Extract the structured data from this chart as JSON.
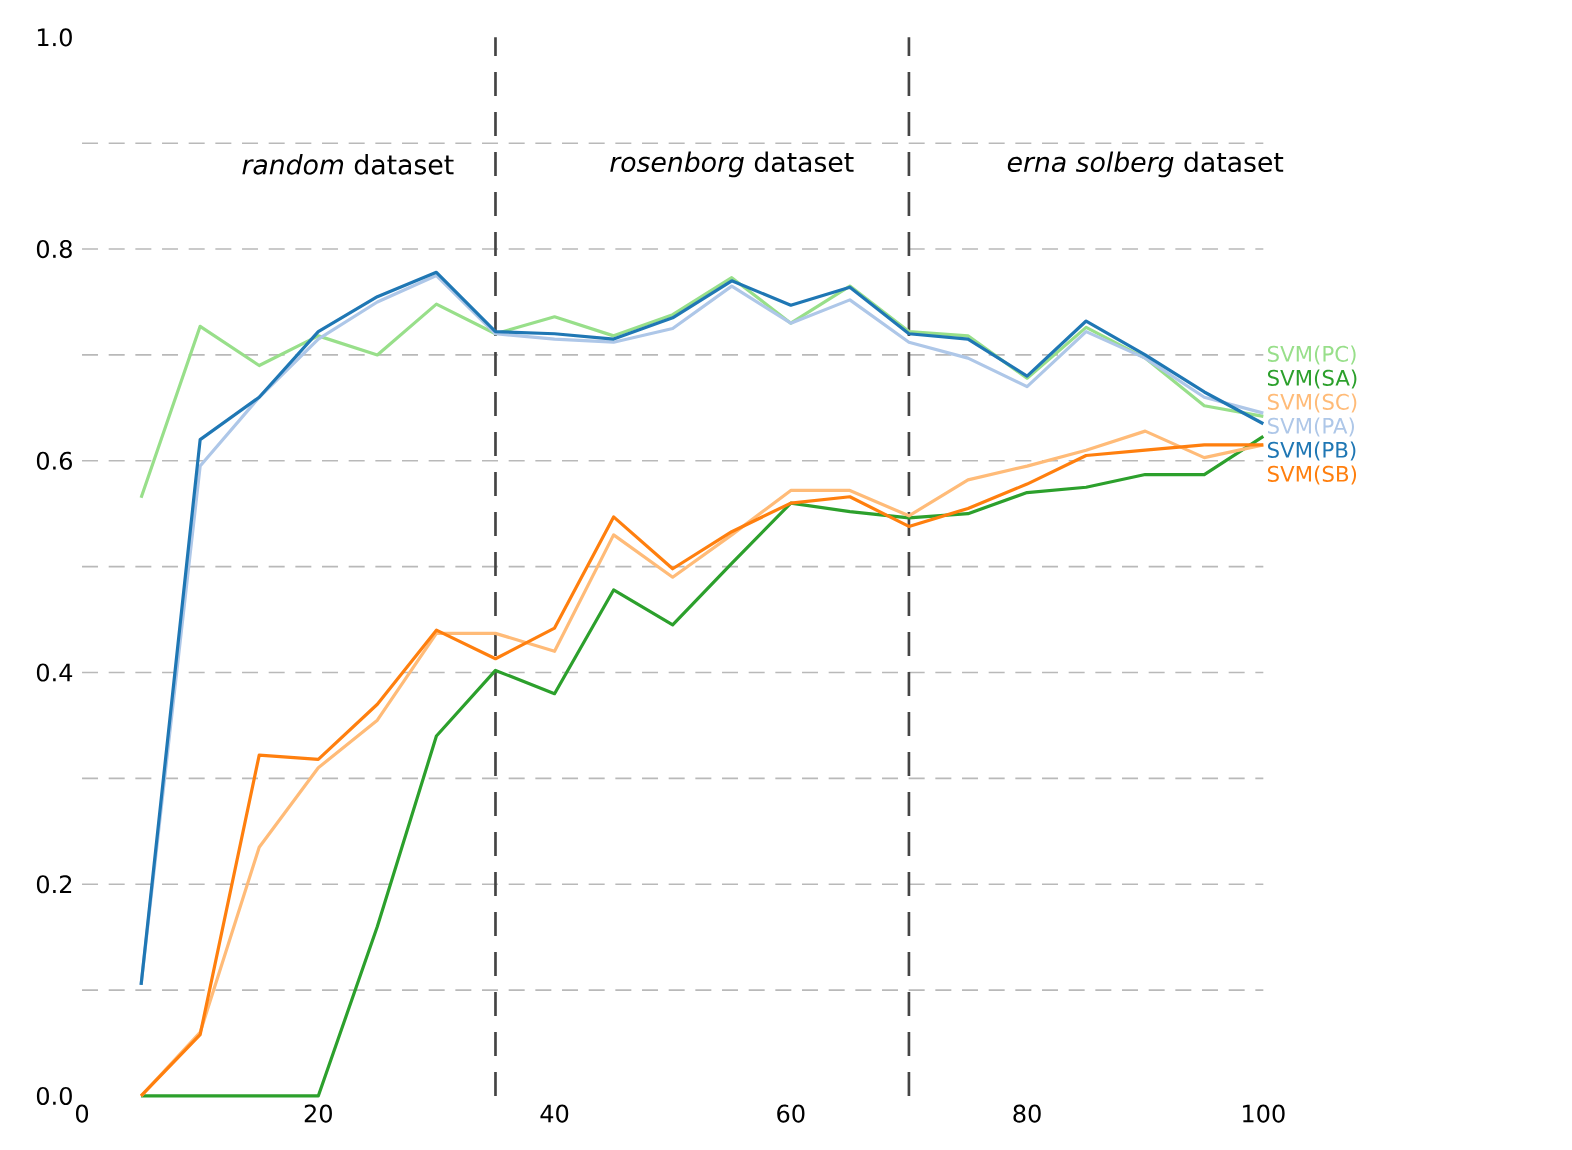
{
  "chart_data": {
    "type": "line",
    "x": [
      5,
      10,
      15,
      20,
      25,
      30,
      35,
      40,
      45,
      50,
      55,
      60,
      65,
      70,
      75,
      80,
      85,
      90,
      95,
      100
    ],
    "series": [
      {
        "name": "SVM(PC)",
        "color": "#98df8a",
        "values": [
          0.565,
          0.727,
          0.69,
          0.718,
          0.7,
          0.748,
          0.72,
          0.736,
          0.718,
          0.738,
          0.773,
          0.73,
          0.765,
          0.722,
          0.718,
          0.678,
          0.726,
          0.697,
          0.652,
          0.642
        ]
      },
      {
        "name": "SVM(SA)",
        "color": "#2ca02c",
        "values": [
          0,
          0,
          0,
          0,
          0.16,
          0.34,
          0.402,
          0.38,
          0.478,
          0.445,
          0.503,
          0.56,
          0.552,
          0.546,
          0.55,
          0.57,
          0.575,
          0.587,
          0.587,
          0.623
        ]
      },
      {
        "name": "SVM(SC)",
        "color": "#ffbb78",
        "values": [
          0,
          0.06,
          0.235,
          0.31,
          0.355,
          0.437,
          0.437,
          0.42,
          0.53,
          0.49,
          0.53,
          0.572,
          0.572,
          0.548,
          0.582,
          0.595,
          0.61,
          0.628,
          0.603,
          0.615
        ]
      },
      {
        "name": "SVM(PA)",
        "color": "#aec7e8",
        "values": [
          0.105,
          0.595,
          0.66,
          0.715,
          0.75,
          0.775,
          0.72,
          0.715,
          0.712,
          0.725,
          0.765,
          0.73,
          0.752,
          0.712,
          0.697,
          0.67,
          0.722,
          0.697,
          0.66,
          0.645
        ]
      },
      {
        "name": "SVM(PB)",
        "color": "#1f77b4",
        "values": [
          0.105,
          0.62,
          0.66,
          0.722,
          0.755,
          0.778,
          0.722,
          0.72,
          0.715,
          0.735,
          0.77,
          0.747,
          0.764,
          0.72,
          0.715,
          0.68,
          0.732,
          0.7,
          0.665,
          0.635
        ]
      },
      {
        "name": "SVM(SB)",
        "color": "#ff7f0e",
        "values": [
          0,
          0.058,
          0.322,
          0.318,
          0.37,
          0.44,
          0.413,
          0.442,
          0.547,
          0.498,
          0.533,
          0.56,
          0.566,
          0.538,
          0.555,
          0.578,
          0.605,
          0.61,
          0.615,
          0.615
        ]
      }
    ],
    "xlim": [
      0,
      100
    ],
    "xticks": [
      0,
      20,
      40,
      60,
      80,
      100
    ],
    "ylim": [
      0,
      1.0
    ],
    "yticks": [
      {
        "value": 0,
        "label": "0.0"
      },
      {
        "value": 0.1,
        "label": null
      },
      {
        "value": 0.2,
        "label": "0.2"
      },
      {
        "value": 0.3,
        "label": null
      },
      {
        "value": 0.4,
        "label": "0.4"
      },
      {
        "value": 0.5,
        "label": null
      },
      {
        "value": 0.6,
        "label": "0.6"
      },
      {
        "value": 0.7,
        "label": null
      },
      {
        "value": 0.8,
        "label": "0.8"
      },
      {
        "value": 0.9,
        "label": null
      },
      {
        "value": 1.0,
        "label": "1.0"
      }
    ],
    "grid": "y",
    "marker": "none",
    "line_style": "solid",
    "ref_lines": [
      {
        "axis": "x",
        "value": 35,
        "color": "#444444",
        "line_style": "dashed"
      },
      {
        "axis": "x",
        "value": 70,
        "color": "#444444",
        "line_style": "dashed"
      }
    ],
    "annotations": [
      "*random* dataset",
      "*rosenborg* dataset",
      "*erna solberg* dataset"
    ]
  }
}
